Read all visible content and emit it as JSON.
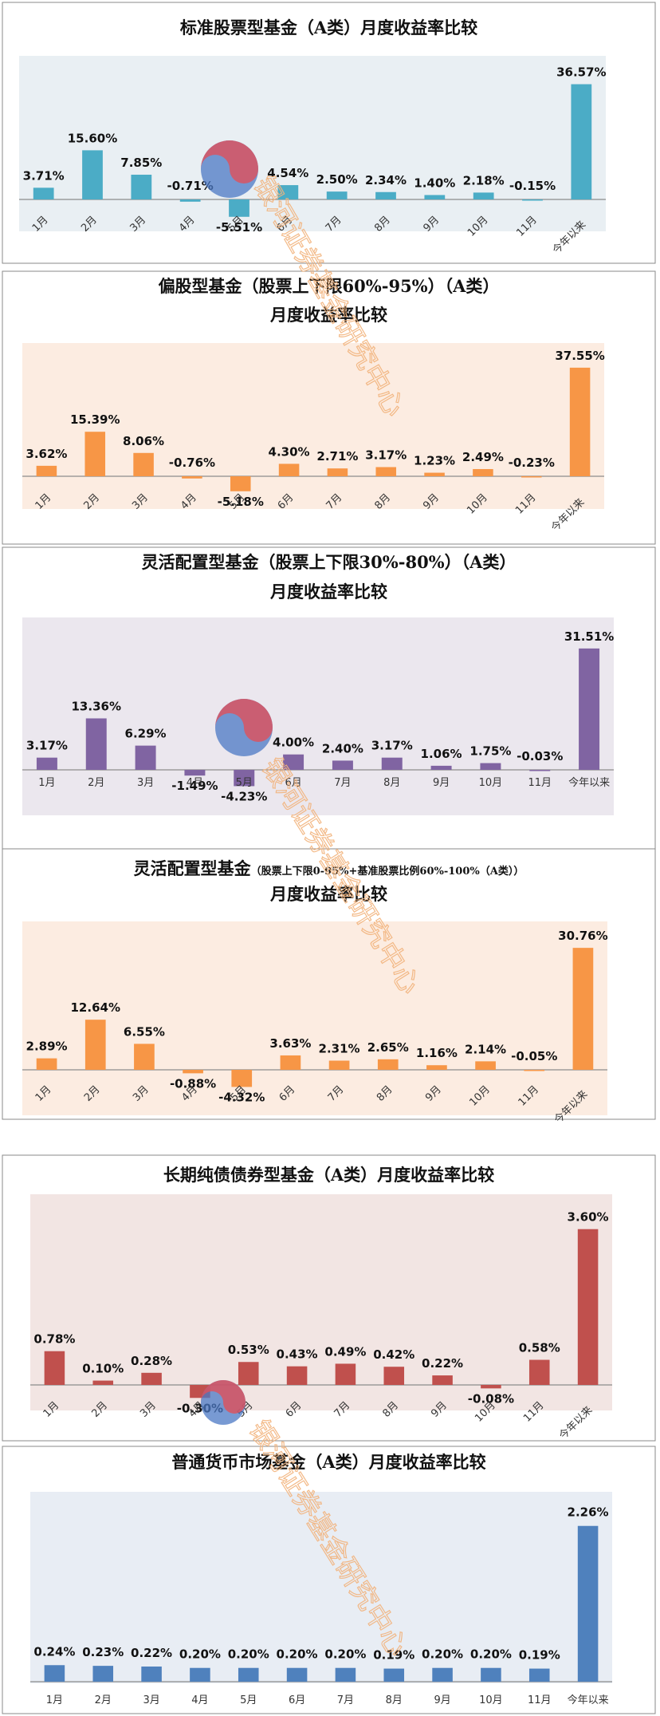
{
  "watermark": {
    "text": "银河证券基金研究中心",
    "color": "#f2b37c"
  },
  "chart_data": [
    {
      "type": "bar",
      "title": "标准股票型基金（A类）月度收益率比较",
      "subtitle": "",
      "categories": [
        "1月",
        "2月",
        "3月",
        "4月",
        "5月",
        "6月",
        "7月",
        "8月",
        "9月",
        "10月",
        "11月",
        "今年以来"
      ],
      "values": [
        3.71,
        15.6,
        7.85,
        -0.71,
        -5.51,
        4.54,
        2.5,
        2.34,
        1.4,
        2.18,
        -0.15,
        36.57
      ],
      "labels": [
        "3.71%",
        "15.60%",
        "7.85%",
        "-0.71%",
        "-5.51%",
        "4.54%",
        "2.50%",
        "2.34%",
        "1.40%",
        "2.18%",
        "-0.15%",
        "36.57%"
      ],
      "ylim": [
        -8,
        40
      ],
      "bar_color": "#4bacc6",
      "plot_bg": "#e9eff3",
      "grid": false,
      "legend": "none"
    },
    {
      "type": "bar",
      "title": "偏股型基金（股票上下限60%-95%）（A类）",
      "subtitle": "月度收益率比较",
      "categories": [
        "1月",
        "2月",
        "3月",
        "4月",
        "5月",
        "6月",
        "7月",
        "8月",
        "9月",
        "10月",
        "11月",
        "今年以来"
      ],
      "values": [
        3.62,
        15.39,
        8.06,
        -0.76,
        -5.18,
        4.3,
        2.71,
        3.17,
        1.23,
        2.49,
        -0.23,
        37.55
      ],
      "labels": [
        "3.62%",
        "15.39%",
        "8.06%",
        "-0.76%",
        "-5.18%",
        "4.30%",
        "2.71%",
        "3.17%",
        "1.23%",
        "2.49%",
        "-0.23%",
        "37.55%"
      ],
      "ylim": [
        -8,
        40
      ],
      "bar_color": "#f79646",
      "plot_bg": "#fcece1",
      "grid": false,
      "legend": "none"
    },
    {
      "type": "bar",
      "title": "灵活配置型基金（股票上下限30%-80%）（A类）",
      "subtitle": "月度收益率比较",
      "categories": [
        "1月",
        "2月",
        "3月",
        "4月",
        "5月",
        "6月",
        "7月",
        "8月",
        "9月",
        "10月",
        "11月",
        "今年以来"
      ],
      "values": [
        3.17,
        13.36,
        6.29,
        -1.49,
        -4.23,
        4.0,
        2.4,
        3.17,
        1.06,
        1.75,
        -0.03,
        31.51
      ],
      "labels": [
        "3.17%",
        "13.36%",
        "6.29%",
        "-1.49%",
        "-4.23%",
        "4.00%",
        "2.40%",
        "3.17%",
        "1.06%",
        "1.75%",
        "-0.03%",
        "31.51%"
      ],
      "ylim": [
        -10,
        35
      ],
      "bar_color": "#8064a2",
      "plot_bg": "#ebe7ee",
      "grid": false,
      "legend": "none"
    },
    {
      "type": "bar",
      "title": "灵活配置型基金",
      "title_small": "（股票上下限0-95%+基准股票比例60%-100%（A类））",
      "subtitle": "月度收益率比较",
      "categories": [
        "1月",
        "2月",
        "3月",
        "4月",
        "5月",
        "6月",
        "7月",
        "8月",
        "9月",
        "10月",
        "11月",
        "今年以来"
      ],
      "values": [
        2.89,
        12.64,
        6.55,
        -0.88,
        -4.32,
        3.63,
        2.31,
        2.65,
        1.16,
        2.14,
        -0.05,
        30.76
      ],
      "labels": [
        "2.89%",
        "12.64%",
        "6.55%",
        "-0.88%",
        "-4.32%",
        "3.63%",
        "2.31%",
        "2.65%",
        "1.16%",
        "2.14%",
        "-0.05%",
        "30.76%"
      ],
      "ylim": [
        -8,
        33
      ],
      "bar_color": "#f79646",
      "plot_bg": "#fcece1",
      "grid": false,
      "legend": "none"
    },
    {
      "type": "bar",
      "title": "长期纯债债券型基金（A类）月度收益率比较",
      "subtitle": "",
      "categories": [
        "1月",
        "2月",
        "3月",
        "4月",
        "5月",
        "6月",
        "7月",
        "8月",
        "9月",
        "10月",
        "11月",
        "今年以来"
      ],
      "values": [
        0.78,
        0.1,
        0.28,
        -0.3,
        0.53,
        0.43,
        0.49,
        0.42,
        0.22,
        -0.08,
        0.58,
        3.6
      ],
      "labels": [
        "0.78%",
        "0.10%",
        "0.28%",
        "-0.30%",
        "0.53%",
        "0.43%",
        "0.49%",
        "0.42%",
        "0.22%",
        "-0.08%",
        "0.58%",
        "3.60%"
      ],
      "ylim": [
        -0.6,
        4.0
      ],
      "bar_color": "#c0504d",
      "plot_bg": "#f2e5e3",
      "grid": false,
      "legend": "none"
    },
    {
      "type": "bar",
      "title": "普通货币市场基金（A类）月度收益率比较",
      "subtitle": "",
      "categories": [
        "1月",
        "2月",
        "3月",
        "4月",
        "5月",
        "6月",
        "7月",
        "8月",
        "9月",
        "10月",
        "11月",
        "今年以来"
      ],
      "values": [
        0.24,
        0.23,
        0.22,
        0.2,
        0.2,
        0.2,
        0.2,
        0.19,
        0.2,
        0.2,
        0.19,
        2.26
      ],
      "labels": [
        "0.24%",
        "0.23%",
        "0.22%",
        "0.20%",
        "0.20%",
        "0.20%",
        "0.20%",
        "0.19%",
        "0.20%",
        "0.20%",
        "0.19%",
        "2.26%"
      ],
      "ylim": [
        0,
        2.5
      ],
      "bar_color": "#4f81bd",
      "plot_bg": "#e8edf4",
      "grid": false,
      "legend": "none"
    }
  ]
}
